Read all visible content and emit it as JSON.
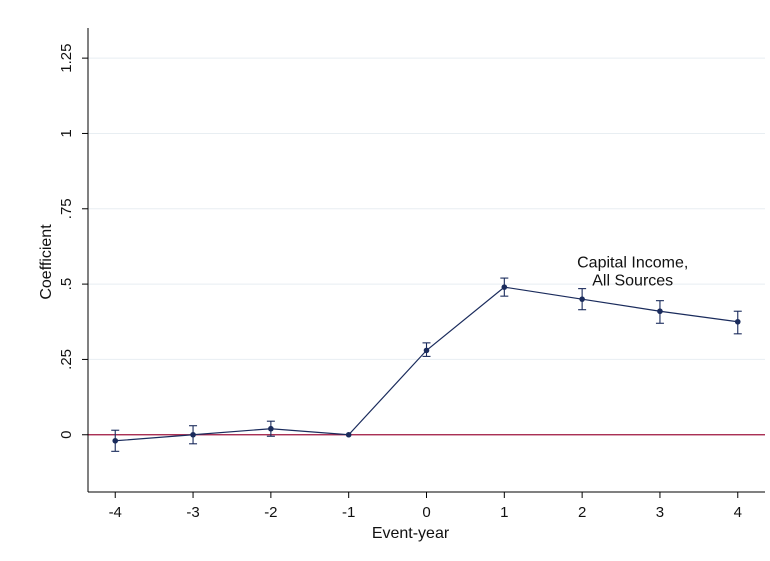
{
  "chart_data": {
    "type": "line",
    "title": "",
    "xlabel": "Event-year",
    "ylabel": "Coefficient",
    "x": [
      -4,
      -3,
      -2,
      -1,
      0,
      1,
      2,
      3,
      4
    ],
    "series": [
      {
        "values": [
          -0.02,
          0.0,
          0.02,
          0.0,
          0.28,
          0.49,
          0.45,
          0.41,
          0.375
        ],
        "ci_low": [
          -0.055,
          -0.03,
          -0.005,
          0.0,
          0.26,
          0.46,
          0.415,
          0.37,
          0.335
        ],
        "ci_high": [
          0.015,
          0.03,
          0.045,
          0.0,
          0.305,
          0.52,
          0.485,
          0.445,
          0.41
        ]
      }
    ],
    "xticks": [
      -4,
      -3,
      -2,
      -1,
      0,
      1,
      2,
      3,
      4
    ],
    "xtick_labels": [
      "-4",
      "-3",
      "-2",
      "-1",
      "0",
      "1",
      "2",
      "3",
      "4"
    ],
    "yticks": [
      0,
      0.25,
      0.5,
      0.75,
      1,
      1.25
    ],
    "ytick_labels": [
      "0",
      ".25",
      ".5",
      ".75",
      "1",
      "1.25"
    ],
    "xlim": [
      -4.35,
      4.35
    ],
    "ylim": [
      -0.19,
      1.35
    ],
    "reference_line": {
      "y": 0,
      "color": "#a0153e"
    },
    "annotation": {
      "lines": [
        "Capital Income,",
        "All Sources"
      ],
      "x": 2.65,
      "y": 0.555
    },
    "grid": true,
    "legend": "none",
    "colors": {
      "series": "#1a2b5c",
      "reference": "#a0153e",
      "grid": "#e8eef2"
    }
  }
}
